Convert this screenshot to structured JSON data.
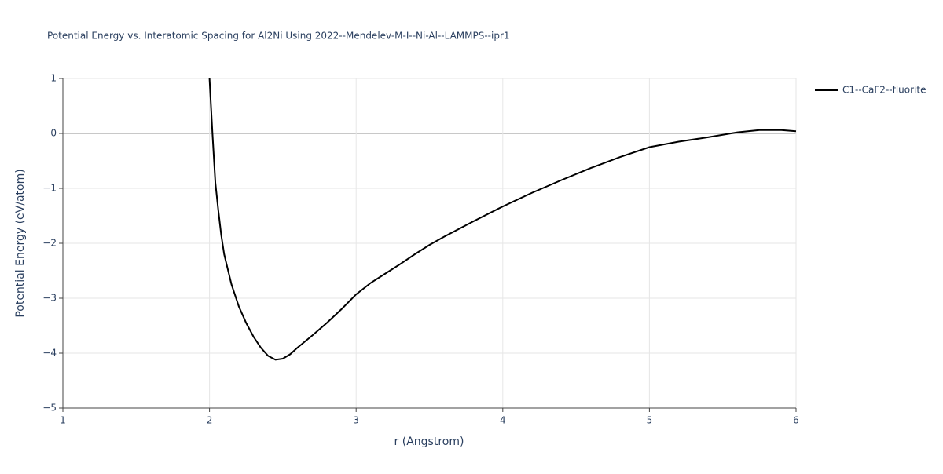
{
  "chart_data": {
    "type": "line",
    "title": "Potential Energy vs. Interatomic Spacing for Al2Ni Using 2022--Mendelev-M-I--Ni-Al--LAMMPS--ipr1",
    "x_label": "r (Angstrom)",
    "y_label": "Potential Energy (eV/atom)",
    "xlim": [
      1,
      6
    ],
    "ylim": [
      -5,
      1
    ],
    "xticks": [
      1,
      2,
      3,
      4,
      5,
      6
    ],
    "yticks": [
      {
        "value": -5,
        "label": "−5"
      },
      {
        "value": -4,
        "label": "−4"
      },
      {
        "value": -3,
        "label": "−3"
      },
      {
        "value": -2,
        "label": "−2"
      },
      {
        "value": -1,
        "label": "−1"
      },
      0,
      1
    ],
    "grid": true,
    "legend": "top-right",
    "series": [
      {
        "name": "C1--CaF2--fluorite",
        "color": "#000000",
        "x": [
          2.0,
          2.02,
          2.04,
          2.06,
          2.08,
          2.1,
          2.15,
          2.2,
          2.25,
          2.3,
          2.35,
          2.4,
          2.45,
          2.5,
          2.55,
          2.6,
          2.7,
          2.8,
          2.9,
          3.0,
          3.1,
          3.2,
          3.3,
          3.4,
          3.5,
          3.6,
          3.8,
          4.0,
          4.2,
          4.4,
          4.6,
          4.8,
          5.0,
          5.2,
          5.4,
          5.6,
          5.75,
          5.9,
          6.0
        ],
        "values": [
          1.0,
          0.0,
          -0.9,
          -1.4,
          -1.85,
          -2.2,
          -2.75,
          -3.15,
          -3.45,
          -3.7,
          -3.9,
          -4.05,
          -4.12,
          -4.1,
          -4.02,
          -3.9,
          -3.68,
          -3.45,
          -3.2,
          -2.93,
          -2.72,
          -2.55,
          -2.38,
          -2.2,
          -2.03,
          -1.88,
          -1.6,
          -1.33,
          -1.08,
          -0.85,
          -0.63,
          -0.43,
          -0.25,
          -0.15,
          -0.07,
          0.02,
          0.06,
          0.06,
          0.04
        ]
      }
    ]
  }
}
